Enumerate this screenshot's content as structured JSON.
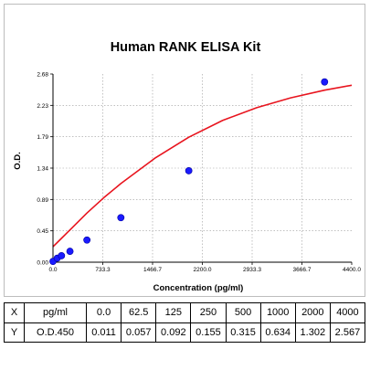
{
  "chart_data": {
    "type": "scatter",
    "title": "Human RANK ELISA Kit",
    "xlabel": "Concentration (pg/ml)",
    "ylabel": "O.D.",
    "xlim": [
      0,
      4400
    ],
    "ylim": [
      0,
      2.68
    ],
    "x_ticks": [
      "0.0",
      "733.3",
      "1466.7",
      "2200.0",
      "2933.3",
      "3666.7",
      "4400.0"
    ],
    "y_ticks": [
      "0.00",
      "0.45",
      "0.89",
      "1.34",
      "1.79",
      "2.23",
      "2.68"
    ],
    "grid": true,
    "grid_style": "dotted",
    "legend": "none",
    "series": [
      {
        "kind": "points",
        "color": "#1a1aff",
        "x": [
          0,
          62.5,
          125,
          250,
          500,
          1000,
          2000,
          4000
        ],
        "y": [
          0.011,
          0.057,
          0.092,
          0.155,
          0.315,
          0.634,
          1.302,
          2.567
        ]
      },
      {
        "kind": "fitted-curve",
        "color": "#e8141e",
        "x": [
          0,
          125,
          250,
          500,
          750,
          1000,
          1500,
          2000,
          2500,
          3000,
          3500,
          4000,
          4400
        ],
        "y": [
          0.22,
          0.34,
          0.46,
          0.7,
          0.92,
          1.12,
          1.48,
          1.78,
          2.02,
          2.2,
          2.34,
          2.45,
          2.52
        ]
      }
    ]
  },
  "table": {
    "rows": [
      {
        "label": "X",
        "name": "pg/ml",
        "values": [
          "0.0",
          "62.5",
          "125",
          "250",
          "500",
          "1000",
          "2000",
          "4000"
        ]
      },
      {
        "label": "Y",
        "name": "O.D.450",
        "values": [
          "0.011",
          "0.057",
          "0.092",
          "0.155",
          "0.315",
          "0.634",
          "1.302",
          "2.567"
        ]
      }
    ]
  }
}
